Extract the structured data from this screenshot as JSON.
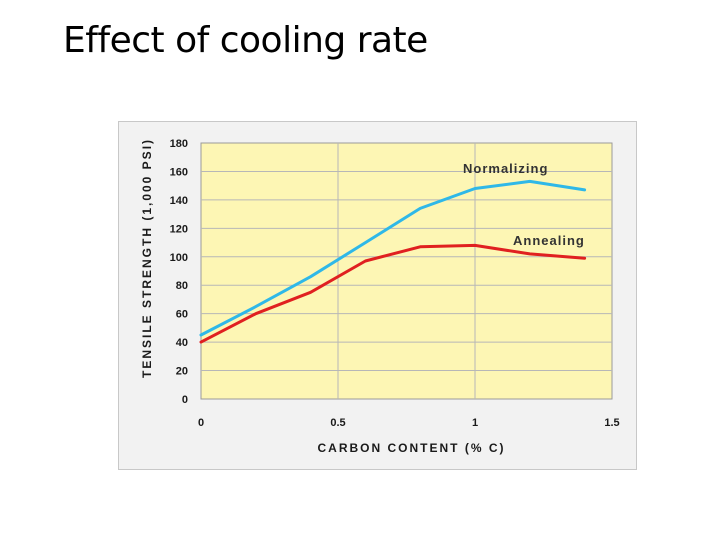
{
  "slide": {
    "title": "Effect of cooling rate"
  },
  "colors": {
    "plot_background": "#fdf6b4",
    "normalizing": "#2fb8e8",
    "annealing": "#e02020",
    "grid": "#b7b7b7"
  },
  "chart_data": {
    "type": "line",
    "title": "",
    "xlabel": "CARBON CONTENT (% C)",
    "ylabel": "TENSILE STRENGTH (1,000 PSI)",
    "xlim": [
      0,
      1.5
    ],
    "ylim": [
      0,
      180
    ],
    "x_ticks": [
      0,
      0.5,
      1,
      1.5
    ],
    "x_tick_labels": [
      "0",
      "0.5",
      "1",
      "1.5"
    ],
    "y_ticks": [
      0,
      20,
      40,
      60,
      80,
      100,
      120,
      140,
      160,
      180
    ],
    "y_tick_labels": [
      "0",
      "20",
      "40",
      "60",
      "80",
      "100",
      "120",
      "140",
      "160",
      "180"
    ],
    "grid": true,
    "series": [
      {
        "name": "Normalizing",
        "color": "#2fb8e8",
        "x": [
          0,
          0.2,
          0.4,
          0.6,
          0.8,
          1.0,
          1.2,
          1.4
        ],
        "y": [
          45,
          65,
          86,
          110,
          134,
          148,
          153,
          147
        ]
      },
      {
        "name": "Annealing",
        "color": "#e02020",
        "x": [
          0,
          0.2,
          0.4,
          0.6,
          0.8,
          1.0,
          1.2,
          1.4
        ],
        "y": [
          40,
          60,
          75,
          97,
          107,
          108,
          102,
          99
        ]
      }
    ]
  }
}
